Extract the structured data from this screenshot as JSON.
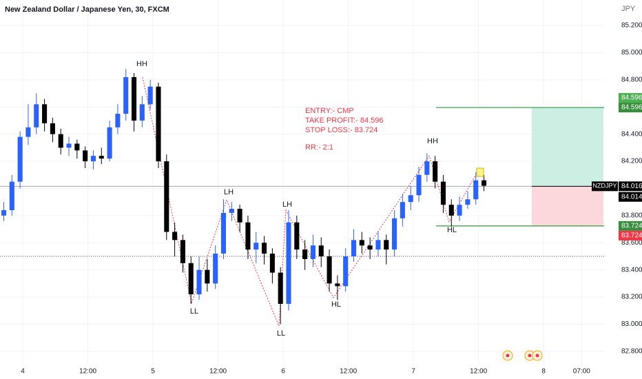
{
  "chart_data": {
    "type": "candlestick",
    "title": "New Zealand Dollar / Japanese Yen, 30, FXCM",
    "currency": "JPY",
    "up_color": "#2962ff",
    "down_color": "#000000",
    "grid": true,
    "x": [
      -7,
      -4,
      -1,
      2,
      5,
      8,
      11,
      14,
      17,
      20,
      23,
      26,
      29,
      32,
      35,
      38,
      41,
      44,
      47,
      50,
      53,
      56,
      59,
      62,
      65,
      68,
      71,
      74,
      77,
      80,
      83,
      86,
      89,
      92,
      95,
      98,
      101,
      104,
      107,
      110,
      113,
      116,
      119,
      122,
      125,
      128,
      131,
      134,
      137,
      140,
      143,
      146,
      149,
      152,
      155,
      158,
      161,
      164,
      167,
      170
    ],
    "open": [
      83.8,
      83.84,
      84.05,
      84.38,
      84.45,
      84.62,
      84.48,
      84.4,
      84.3,
      84.33,
      84.28,
      84.2,
      84.24,
      84.22,
      84.45,
      84.55,
      84.82,
      84.5,
      84.62,
      84.75,
      84.2,
      83.68,
      83.62,
      83.45,
      83.22,
      83.4,
      83.3,
      83.52,
      83.82,
      83.85,
      83.75,
      83.55,
      83.6,
      83.52,
      83.38,
      83.15,
      83.75,
      83.55,
      83.48,
      83.58,
      83.5,
      83.3,
      83.28,
      83.5,
      83.62,
      83.58,
      83.55,
      83.62,
      83.55,
      83.78,
      83.9,
      83.95,
      84.1,
      84.2,
      84.05,
      83.88,
      83.8,
      83.88,
      83.92,
      84.06
    ],
    "high": [
      83.9,
      84.1,
      84.42,
      84.62,
      84.7,
      84.66,
      84.52,
      84.44,
      84.38,
      84.36,
      84.31,
      84.28,
      84.3,
      84.5,
      84.62,
      84.88,
      84.85,
      84.68,
      84.8,
      84.78,
      84.25,
      83.75,
      83.66,
      83.5,
      83.5,
      83.48,
      83.58,
      83.92,
      83.9,
      83.88,
      83.8,
      83.68,
      83.65,
      83.56,
      83.42,
      83.84,
      83.8,
      83.62,
      83.66,
      83.64,
      83.55,
      83.36,
      83.56,
      83.7,
      83.68,
      83.64,
      83.68,
      83.66,
      83.84,
      83.96,
      84.02,
      84.16,
      84.26,
      84.24,
      84.1,
      83.92,
      83.94,
      83.98,
      84.12,
      84.1
    ],
    "low": [
      83.76,
      83.8,
      84.0,
      84.32,
      84.4,
      84.42,
      84.34,
      84.25,
      84.24,
      84.22,
      84.15,
      84.14,
      84.18,
      84.2,
      84.4,
      84.5,
      84.42,
      84.45,
      84.58,
      84.15,
      83.62,
      83.5,
      83.38,
      83.15,
      83.18,
      83.24,
      83.26,
      83.48,
      83.76,
      83.68,
      83.48,
      83.45,
      83.44,
      83.3,
      83.0,
      83.1,
      83.48,
      83.4,
      83.42,
      83.42,
      83.24,
      83.18,
      83.24,
      83.46,
      83.52,
      83.48,
      83.5,
      83.44,
      83.5,
      83.72,
      83.84,
      83.9,
      84.05,
      84.0,
      83.82,
      83.72,
      83.76,
      83.85,
      83.88,
      83.98
    ],
    "close": [
      83.84,
      84.05,
      84.38,
      84.45,
      84.62,
      84.48,
      84.4,
      84.3,
      84.33,
      84.28,
      84.2,
      84.24,
      84.22,
      84.45,
      84.55,
      84.82,
      84.5,
      84.62,
      84.75,
      84.2,
      83.68,
      83.62,
      83.45,
      83.22,
      83.4,
      83.3,
      83.52,
      83.82,
      83.85,
      83.75,
      83.55,
      83.6,
      83.52,
      83.38,
      83.15,
      83.75,
      83.55,
      83.48,
      83.58,
      83.5,
      83.3,
      83.28,
      83.5,
      83.62,
      83.58,
      83.55,
      83.62,
      83.55,
      83.78,
      83.9,
      83.95,
      84.1,
      84.2,
      84.05,
      83.88,
      83.8,
      83.88,
      83.92,
      84.06,
      84.02
    ],
    "xlim": [
      -8.4,
      214.3
    ],
    "xticks": [
      {
        "value": 0,
        "label": "4"
      },
      {
        "value": 24,
        "label": "12:00"
      },
      {
        "value": 48,
        "label": "5"
      },
      {
        "value": 72,
        "label": "12:00"
      },
      {
        "value": 96,
        "label": "6"
      },
      {
        "value": 120,
        "label": "12:00"
      },
      {
        "value": 144,
        "label": "7"
      },
      {
        "value": 168,
        "label": "12:00"
      },
      {
        "value": 192,
        "label": "8"
      },
      {
        "value": 206,
        "label": "07:00"
      }
    ],
    "ylim": [
      82.698,
      85.388
    ],
    "yticks": [
      {
        "value": 82.8,
        "label": "82.800"
      },
      {
        "value": 83.0,
        "label": "83.000"
      },
      {
        "value": 83.2,
        "label": "83.200"
      },
      {
        "value": 83.4,
        "label": "83.400"
      },
      {
        "value": 83.6,
        "label": "83.600"
      },
      {
        "value": 83.8,
        "label": "83.800"
      },
      {
        "value": 84.0,
        "label": "84.000"
      },
      {
        "value": 84.2,
        "label": "84.200"
      },
      {
        "value": 84.4,
        "label": "84.400"
      },
      {
        "value": 84.6,
        "label": "84.600"
      },
      {
        "value": 84.8,
        "label": "84.800"
      },
      {
        "value": 85.0,
        "label": "85.000"
      },
      {
        "value": 85.2,
        "label": "85.200"
      }
    ],
    "position": {
      "entry": 84.016,
      "take_profit": 84.596,
      "stop_loss": 83.724
    },
    "level": 83.5,
    "price_tags": [
      {
        "label": "84.596",
        "value": 84.596,
        "color": "#4caf50"
      },
      {
        "label": "84.596",
        "value": 84.596,
        "color": "#388e3c"
      },
      {
        "name": "NZDJPY",
        "label": "84.016",
        "value": 84.016,
        "color": "#000000"
      },
      {
        "label": "84.014",
        "value": 84.014,
        "color": "#000000"
      },
      {
        "label": "83.724",
        "value": 83.724,
        "color": "#388e3c"
      },
      {
        "label": "83.724",
        "value": 83.724,
        "color": "#f23645"
      }
    ],
    "notes": [
      "ENTRY:- CMP",
      "TAKE PROFIT:- 84.596",
      "STOP LOSS:- 83.724",
      "RR:- 2:1"
    ],
    "swing_labels": [
      "HH",
      "LL",
      "LH",
      "LL",
      "LH",
      "HL",
      "HH",
      "HL"
    ]
  }
}
